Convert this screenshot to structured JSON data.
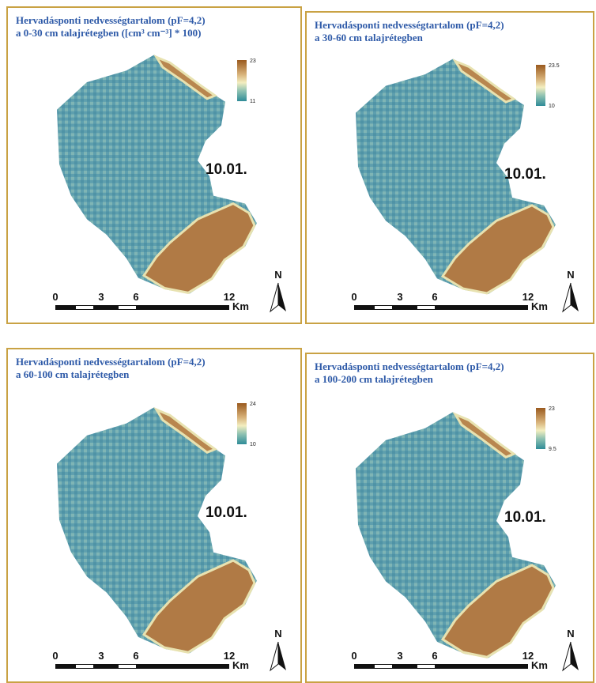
{
  "panels": [
    {
      "title": [
        "Hervadásponti nedvességtartalom (pF=4,2)",
        "a 0-30 cm talajrétegben ([cm³ cm⁻³] * 100)"
      ],
      "legend": {
        "max": 23,
        "min": 11
      },
      "label": "10.01.",
      "scale": {
        "ticks": [
          0,
          3,
          6,
          12
        ],
        "unit": "Km"
      },
      "north": "N"
    },
    {
      "title": [
        "Hervadásponti nedvességtartalom (pF=4,2)",
        "a 30-60 cm talajrétegben"
      ],
      "legend": {
        "max": 23.5,
        "min": 10
      },
      "label": "10.01.",
      "scale": {
        "ticks": [
          0,
          3,
          6,
          12
        ],
        "unit": "Km"
      },
      "north": "N"
    },
    {
      "title": [
        "Hervadásponti nedvességtartalom (pF=4,2)",
        "a 60-100 cm talajrétegben"
      ],
      "legend": {
        "max": 24,
        "min": 10
      },
      "label": "10.01.",
      "scale": {
        "ticks": [
          0,
          3,
          6,
          12
        ],
        "unit": "Km"
      },
      "north": "N"
    },
    {
      "title": [
        "Hervadásponti nedvességtartalom (pF=4,2)",
        "a 100-200 cm talajrétegben"
      ],
      "legend": {
        "max": 23,
        "min": 9.5
      },
      "label": "10.01.",
      "scale": {
        "ticks": [
          0,
          3,
          6,
          12
        ],
        "unit": "Km"
      },
      "north": "N"
    }
  ]
}
